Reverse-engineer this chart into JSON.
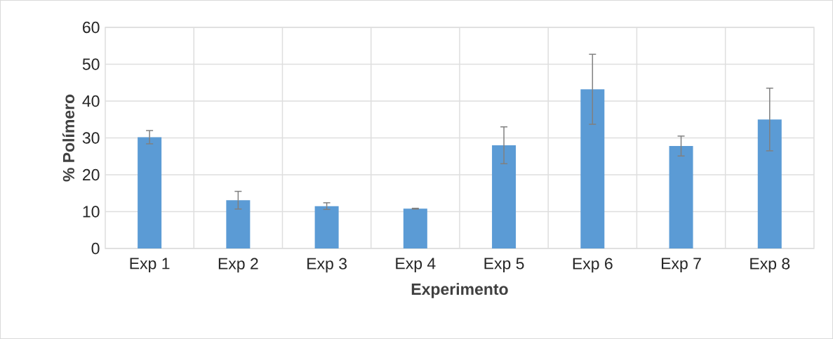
{
  "chart_data": {
    "type": "bar",
    "xlabel": "Experimento",
    "ylabel": "% Polímero",
    "categories": [
      "Exp 1",
      "Exp 2",
      "Exp 3",
      "Exp 4",
      "Exp 5",
      "Exp 6",
      "Exp 7",
      "Exp 8"
    ],
    "values": [
      30.2,
      13.1,
      11.5,
      10.8,
      28.0,
      43.2,
      27.8,
      35.0
    ],
    "errors": [
      1.8,
      2.4,
      0.9,
      0.1,
      5.0,
      9.5,
      2.7,
      8.5
    ],
    "color": "#5b9bd5",
    "ylim": [
      0,
      60
    ],
    "yticks": [
      0,
      10,
      20,
      30,
      40,
      50,
      60
    ],
    "grid": true
  }
}
